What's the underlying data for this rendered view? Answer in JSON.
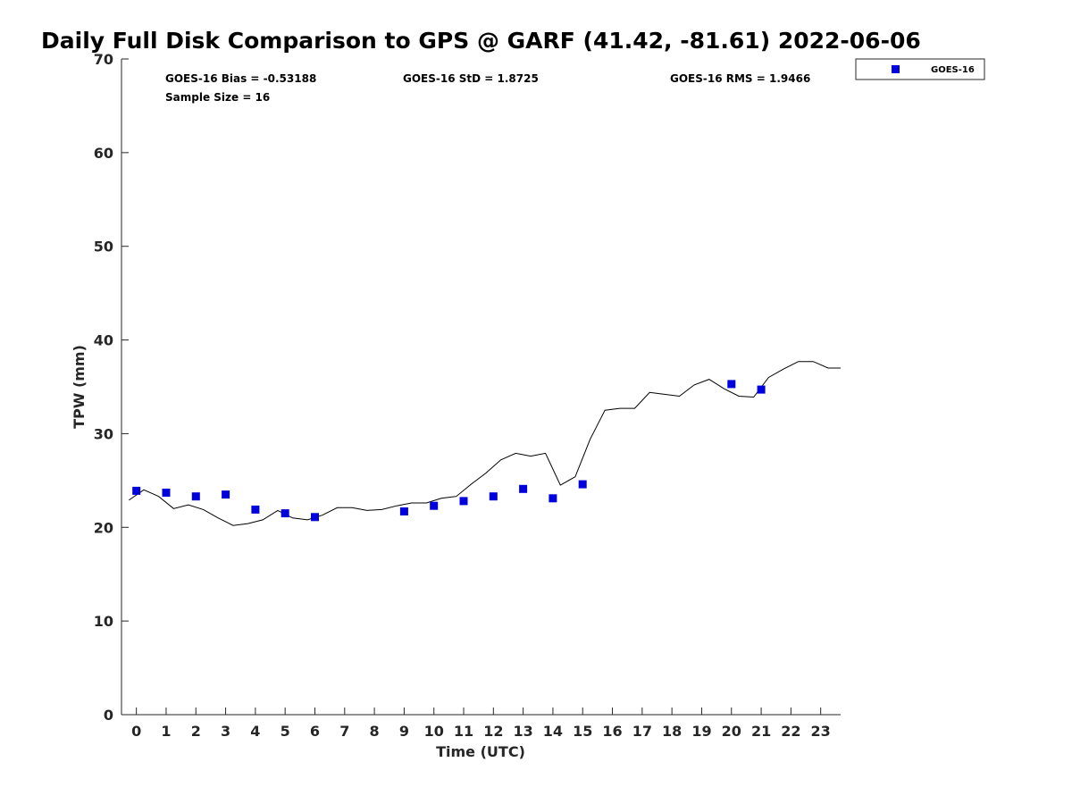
{
  "chart_data": {
    "type": "scatter",
    "title": "Daily Full Disk Comparison to GPS @ GARF (41.42, -81.61) 2022-06-06",
    "xlabel": "Time (UTC)",
    "ylabel": "TPW (mm)",
    "xlim": [
      -0.5,
      23.67
    ],
    "ylim": [
      0,
      70
    ],
    "x_ticks": [
      0,
      1,
      2,
      3,
      4,
      5,
      6,
      7,
      8,
      9,
      10,
      11,
      12,
      13,
      14,
      15,
      16,
      17,
      18,
      19,
      20,
      21,
      22,
      23
    ],
    "x_tick_labels": [
      "0",
      "1",
      "2",
      "3",
      "4",
      "5",
      "6",
      "7",
      "8",
      "9",
      "10",
      "11",
      "12",
      "13",
      "14",
      "15",
      "16",
      "17",
      "18",
      "19",
      "20",
      "21",
      "22",
      "23"
    ],
    "y_ticks": [
      0,
      10,
      20,
      30,
      40,
      50,
      60,
      70
    ],
    "y_tick_labels": [
      "0",
      "10",
      "20",
      "30",
      "40",
      "50",
      "60",
      "70"
    ],
    "grid": false,
    "legend_position": "outside-top-right",
    "stats": {
      "bias": "GOES-16 Bias = -0.53188",
      "std": "GOES-16 StD = 1.8725",
      "rms": "GOES-16 RMS = 1.9466",
      "sample": "Sample Size = 16"
    },
    "series": [
      {
        "name": "GOES-16",
        "kind": "scatter",
        "marker": "square",
        "color": "#0000dd",
        "x": [
          0,
          1,
          2,
          3,
          4,
          5,
          6,
          9,
          10,
          11,
          12,
          13,
          14,
          15,
          20,
          21
        ],
        "y": [
          23.9,
          23.7,
          23.3,
          23.5,
          21.9,
          21.5,
          21.1,
          21.7,
          22.3,
          22.8,
          23.3,
          24.1,
          23.1,
          24.6,
          35.3,
          34.7
        ]
      },
      {
        "kind": "line",
        "color": "#000000",
        "x": [
          -0.25,
          0.25,
          0.75,
          1.25,
          1.75,
          2.25,
          2.75,
          3.25,
          3.75,
          4.25,
          4.75,
          5.25,
          5.75,
          6.25,
          6.75,
          7.25,
          7.75,
          8.25,
          8.75,
          9.25,
          9.75,
          10.25,
          10.75,
          11.25,
          11.75,
          12.25,
          12.75,
          13.25,
          13.75,
          14.25,
          14.75,
          15.25,
          15.75,
          16.25,
          16.75,
          17.25,
          17.75,
          18.25,
          18.75,
          19.25,
          19.75,
          20.25,
          20.75,
          21.25,
          21.75,
          22.25,
          22.75,
          23.25,
          23.67
        ],
        "y": [
          22.9,
          24.0,
          23.3,
          22.0,
          22.4,
          21.9,
          21.0,
          20.2,
          20.4,
          20.8,
          21.8,
          21.0,
          20.8,
          21.3,
          22.1,
          22.1,
          21.8,
          21.9,
          22.3,
          22.6,
          22.6,
          23.1,
          23.3,
          24.6,
          25.8,
          27.2,
          27.9,
          27.6,
          27.9,
          24.5,
          25.4,
          29.4,
          32.5,
          32.7,
          32.7,
          34.4,
          34.2,
          34.0,
          35.2,
          35.8,
          34.8,
          34.0,
          33.9,
          36.0,
          36.9,
          37.7,
          37.7,
          37.0,
          37.0
        ]
      }
    ]
  }
}
